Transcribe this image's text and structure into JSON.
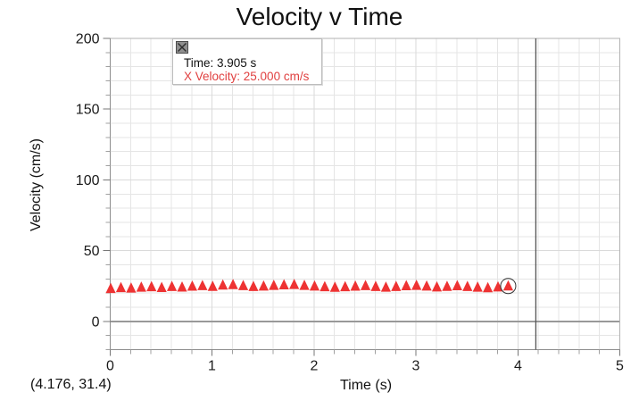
{
  "window": {
    "title": "Velocity v Time"
  },
  "axes": {
    "x_label": "Time (s)",
    "y_label": "Velocity (cm/s)"
  },
  "examine_tooltip": {
    "time_line": "Time: 3.905 s",
    "velocity_line": "X Velocity: 25.000 cm/s"
  },
  "cursor_readout": "(4.176, 31.4)",
  "colors": {
    "marker": "#ee3333",
    "tooltip_value_text": "#e04040",
    "grid_minor": "#e5e5e5",
    "grid_major": "#dadada",
    "zero_line": "#999999",
    "frame": "#b3b3b3",
    "axis_line": "#8d8d8d",
    "tick_minor": "#a0a0a0",
    "tick_major": "#777777",
    "tick_label": "#1a1a1a",
    "crosshair": "#555555",
    "highlight_ring": "#333333"
  },
  "chart_data": {
    "type": "scatter",
    "marker": "triangle-up",
    "title": "Velocity v Time",
    "xlabel": "Time (s)",
    "ylabel": "Velocity (cm/s)",
    "xlim": [
      0,
      5
    ],
    "ylim": [
      -20,
      200
    ],
    "x_major_ticks": [
      0,
      1,
      2,
      3,
      4,
      5
    ],
    "y_major_ticks": [
      0,
      50,
      100,
      150,
      200
    ],
    "x_minor_step": 0.2,
    "y_minor_step": 10,
    "grid": true,
    "legend_position": "none",
    "crosshair_x": 4.176,
    "cursor_position": {
      "x": 4.176,
      "y": 31.4
    },
    "highlighted_point": {
      "x": 3.905,
      "y": 25.0
    },
    "series": [
      {
        "name": "X Velocity",
        "units": "cm/s",
        "x": [
          0.005,
          0.105,
          0.205,
          0.305,
          0.405,
          0.505,
          0.605,
          0.705,
          0.805,
          0.905,
          1.005,
          1.105,
          1.205,
          1.305,
          1.405,
          1.505,
          1.605,
          1.705,
          1.805,
          1.905,
          2.005,
          2.105,
          2.205,
          2.305,
          2.405,
          2.505,
          2.605,
          2.705,
          2.805,
          2.905,
          3.005,
          3.105,
          3.205,
          3.305,
          3.405,
          3.505,
          3.605,
          3.705,
          3.805,
          3.905
        ],
        "y": [
          23.2,
          23.8,
          23.5,
          24.1,
          24.4,
          23.9,
          24.6,
          24.2,
          24.8,
          25.2,
          24.7,
          25.6,
          25.9,
          25.2,
          24.6,
          24.9,
          25.4,
          25.8,
          26.0,
          25.4,
          24.9,
          24.4,
          24.0,
          24.4,
          24.8,
          25.2,
          24.6,
          24.1,
          24.6,
          25.1,
          25.4,
          24.9,
          24.3,
          24.7,
          25.1,
          24.6,
          24.1,
          23.7,
          24.3,
          25.0
        ]
      }
    ]
  }
}
